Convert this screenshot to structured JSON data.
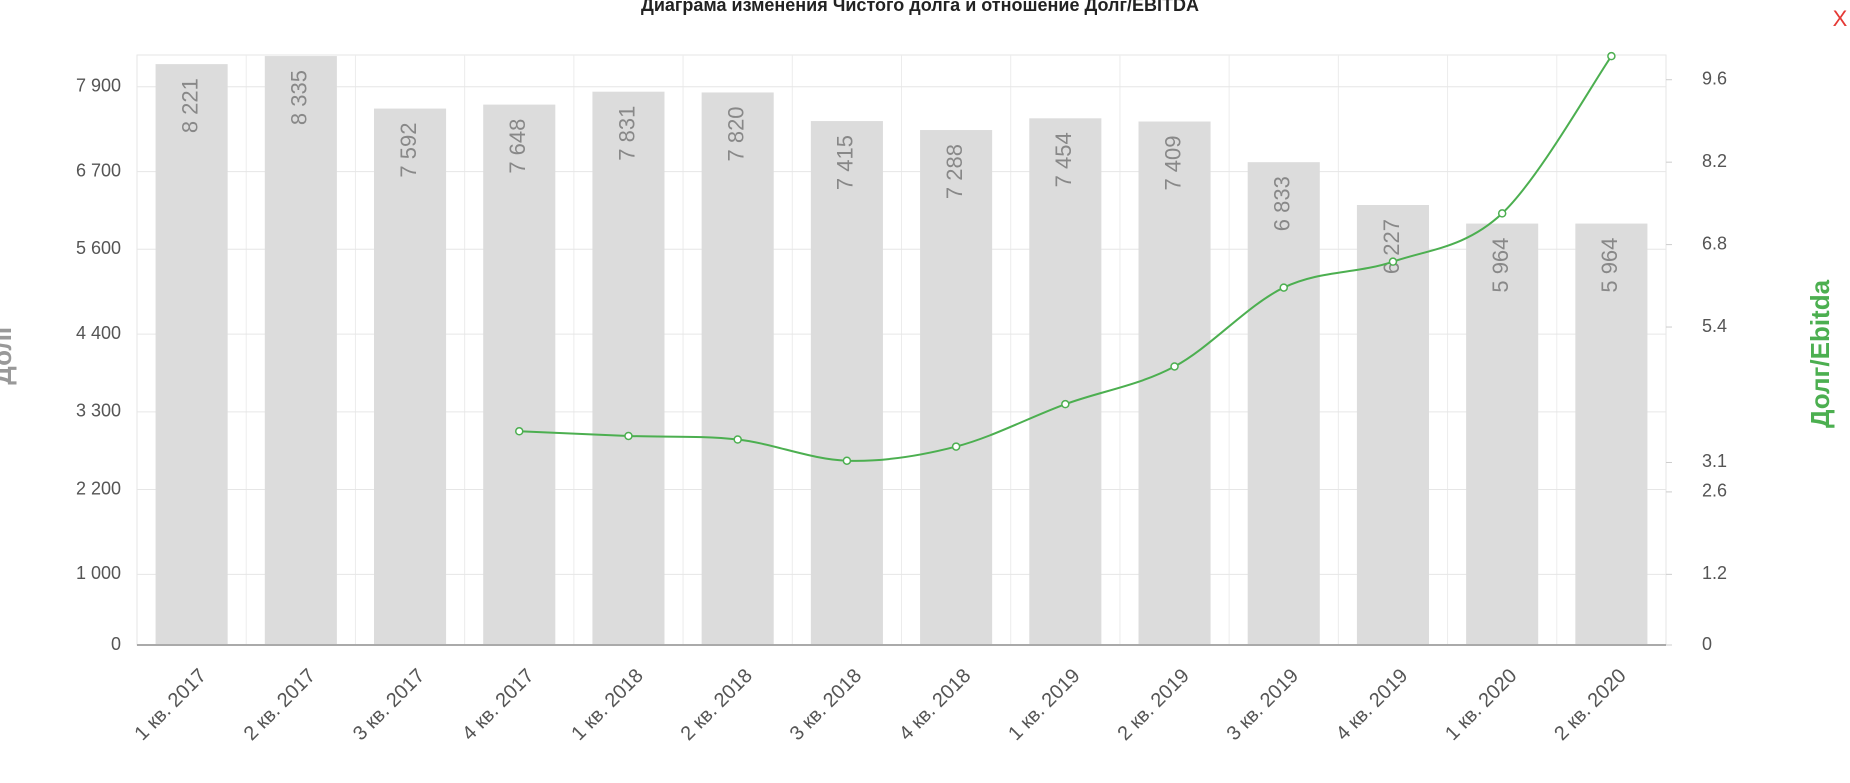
{
  "close_button": "X",
  "chart_data": {
    "type": "bar-line",
    "title": "Диаграма изменения Чистого долга и отношение Долг/EBITDA",
    "ylabel": "Долг",
    "y2label": "Долг/Ebitda",
    "categories": [
      "1 кв. 2017",
      "2 кв. 2017",
      "3 кв. 2017",
      "4 кв. 2017",
      "1 кв. 2018",
      "2 кв. 2018",
      "3 кв. 2018",
      "4 кв. 2018",
      "1 кв. 2019",
      "2 кв. 2019",
      "3 кв. 2019",
      "4 кв. 2019",
      "1 кв. 2020",
      "2 кв. 2020"
    ],
    "series": [
      {
        "type": "bar",
        "color": "#dcdcdc",
        "values": [
          8221,
          8335,
          7592,
          7648,
          7831,
          7820,
          7415,
          7288,
          7454,
          7409,
          6833,
          6227,
          5964,
          5964
        ],
        "value_labels": [
          "8 221",
          "8 335",
          "7 592",
          "7 648",
          "7 831",
          "7 820",
          "7 415",
          "7 288",
          "7 454",
          "7 409",
          "6 833",
          "6 227",
          "5 964",
          "5 964"
        ]
      },
      {
        "type": "line",
        "color": "#4caf50",
        "axis": "y2",
        "values": [
          null,
          null,
          null,
          3.63,
          3.55,
          3.49,
          3.13,
          3.37,
          4.09,
          4.73,
          6.07,
          6.51,
          7.33,
          10.0
        ]
      }
    ],
    "ylim": [
      0,
      8350
    ],
    "yticks": [
      0,
      {
        "value": 1000,
        "label": "1 000"
      },
      {
        "value": 2200,
        "label": "2 200"
      },
      {
        "value": 3300,
        "label": "3 300"
      },
      {
        "value": 4400,
        "label": "4 400"
      },
      {
        "value": 5600,
        "label": "5 600"
      },
      {
        "value": 6700,
        "label": "6 700"
      },
      {
        "value": 7900,
        "label": "7 900"
      }
    ],
    "y2lim": [
      0,
      10.02
    ],
    "y2ticks": [
      0,
      1.2,
      2.6,
      3.1,
      5.4,
      6.8,
      8.2,
      9.6
    ],
    "grid": true
  }
}
